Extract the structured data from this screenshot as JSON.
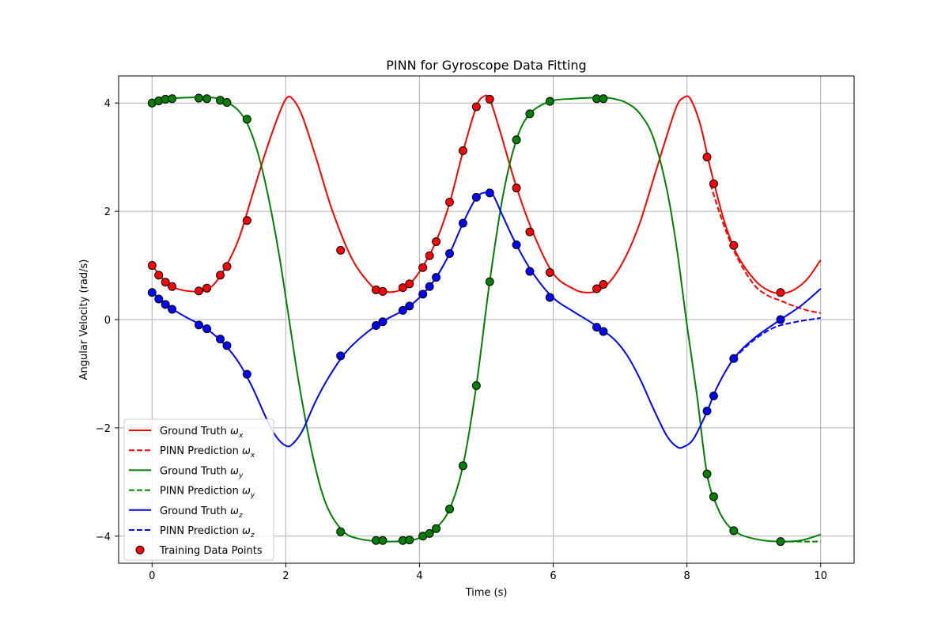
{
  "chart_data": {
    "type": "line",
    "title": "PINN for Gyroscope Data Fitting",
    "xlabel": "Time (s)",
    "ylabel": "Angular Velocity (rad/s)",
    "xlim": [
      -0.5,
      10.5
    ],
    "ylim": [
      -4.5,
      4.5
    ],
    "xticks": [
      0,
      2,
      4,
      6,
      8,
      10
    ],
    "yticks": [
      -4,
      -2,
      0,
      2,
      4
    ],
    "xtick_labels": [
      "0",
      "2",
      "4",
      "6",
      "8",
      "10"
    ],
    "ytick_labels": [
      "−4",
      "−2",
      "0",
      "2",
      "4"
    ],
    "grid": true,
    "legend_position": "lower-left",
    "legend": [
      {
        "text": "Ground Truth ",
        "sym": "ω",
        "sub": "x",
        "color": "#ff0000",
        "style": "solid"
      },
      {
        "text": "PINN Prediction ",
        "sym": "ω",
        "sub": "x",
        "color": "#ff0000",
        "style": "dashed"
      },
      {
        "text": "Ground Truth ",
        "sym": "ω",
        "sub": "y",
        "color": "#008000",
        "style": "solid"
      },
      {
        "text": "PINN Prediction ",
        "sym": "ω",
        "sub": "y",
        "color": "#008000",
        "style": "dashed"
      },
      {
        "text": "Ground Truth ",
        "sym": "ω",
        "sub": "z",
        "color": "#0000ff",
        "style": "solid"
      },
      {
        "text": "PINN Prediction ",
        "sym": "ω",
        "sub": "z",
        "color": "#0000ff",
        "style": "dashed"
      },
      {
        "text": "Training Data Points",
        "sym": "",
        "sub": "",
        "color": "#ff0000",
        "style": "marker"
      }
    ],
    "series": [
      {
        "color": "#ff0000",
        "truth": [
          [
            0,
            1.0
          ],
          [
            0.2,
            0.7
          ],
          [
            0.4,
            0.56
          ],
          [
            0.7,
            0.52
          ],
          [
            0.9,
            0.62
          ],
          [
            1.1,
            0.97
          ],
          [
            1.3,
            1.5
          ],
          [
            1.5,
            2.3
          ],
          [
            1.7,
            3.1
          ],
          [
            1.9,
            3.8
          ],
          [
            2.02,
            4.1
          ],
          [
            2.12,
            4.05
          ],
          [
            2.25,
            3.75
          ],
          [
            2.45,
            3.0
          ],
          [
            2.7,
            2.0
          ],
          [
            3.0,
            1.1
          ],
          [
            3.3,
            0.6
          ],
          [
            3.45,
            0.52
          ],
          [
            3.65,
            0.52
          ],
          [
            3.85,
            0.65
          ],
          [
            4.05,
            0.98
          ],
          [
            4.25,
            1.45
          ],
          [
            4.45,
            2.15
          ],
          [
            4.65,
            3.1
          ],
          [
            4.85,
            3.93
          ],
          [
            4.96,
            4.12
          ],
          [
            5.05,
            4.07
          ],
          [
            5.2,
            3.5
          ],
          [
            5.45,
            2.45
          ],
          [
            5.7,
            1.6
          ],
          [
            6.0,
            0.85
          ],
          [
            6.3,
            0.57
          ],
          [
            6.5,
            0.5
          ],
          [
            6.7,
            0.55
          ],
          [
            6.9,
            0.78
          ],
          [
            7.1,
            1.2
          ],
          [
            7.3,
            1.8
          ],
          [
            7.5,
            2.6
          ],
          [
            7.7,
            3.4
          ],
          [
            7.85,
            3.95
          ],
          [
            7.95,
            4.1
          ],
          [
            8.05,
            4.08
          ],
          [
            8.2,
            3.6
          ],
          [
            8.35,
            2.8
          ],
          [
            8.55,
            1.85
          ],
          [
            8.75,
            1.2
          ],
          [
            9.0,
            0.75
          ],
          [
            9.2,
            0.55
          ],
          [
            9.4,
            0.48
          ],
          [
            9.6,
            0.55
          ],
          [
            9.8,
            0.75
          ],
          [
            10.0,
            1.1
          ]
        ],
        "pinn": [
          [
            8.35,
            2.5
          ],
          [
            8.55,
            1.75
          ],
          [
            8.75,
            1.15
          ],
          [
            9.0,
            0.65
          ],
          [
            9.2,
            0.45
          ],
          [
            9.4,
            0.35
          ],
          [
            9.6,
            0.25
          ],
          [
            9.8,
            0.17
          ],
          [
            10.0,
            0.12
          ]
        ],
        "points": [
          [
            0,
            1.0
          ],
          [
            0.1,
            0.82
          ],
          [
            0.2,
            0.69
          ],
          [
            0.3,
            0.61
          ],
          [
            0.7,
            0.53
          ],
          [
            0.82,
            0.58
          ],
          [
            1.02,
            0.82
          ],
          [
            1.12,
            0.98
          ],
          [
            1.42,
            1.83
          ],
          [
            2.82,
            1.28
          ],
          [
            3.35,
            0.55
          ],
          [
            3.45,
            0.52
          ],
          [
            3.75,
            0.59
          ],
          [
            3.85,
            0.66
          ],
          [
            4.05,
            0.96
          ],
          [
            4.15,
            1.18
          ],
          [
            4.25,
            1.44
          ],
          [
            4.45,
            2.17
          ],
          [
            4.65,
            3.12
          ],
          [
            4.85,
            3.93
          ],
          [
            5.05,
            4.07
          ],
          [
            5.45,
            2.43
          ],
          [
            5.65,
            1.62
          ],
          [
            5.95,
            0.87
          ],
          [
            6.65,
            0.57
          ],
          [
            6.75,
            0.65
          ],
          [
            8.3,
            3.0
          ],
          [
            8.4,
            2.51
          ],
          [
            8.7,
            1.37
          ],
          [
            9.4,
            0.5
          ]
        ]
      },
      {
        "color": "#008000",
        "truth": [
          [
            0,
            4.0
          ],
          [
            0.2,
            4.07
          ],
          [
            0.5,
            4.1
          ],
          [
            0.9,
            4.1
          ],
          [
            1.1,
            4.03
          ],
          [
            1.3,
            3.85
          ],
          [
            1.45,
            3.55
          ],
          [
            1.6,
            3.0
          ],
          [
            1.75,
            2.2
          ],
          [
            1.9,
            1.2
          ],
          [
            2.05,
            0.0
          ],
          [
            2.2,
            -1.2
          ],
          [
            2.4,
            -2.5
          ],
          [
            2.6,
            -3.4
          ],
          [
            2.85,
            -3.9
          ],
          [
            3.1,
            -4.05
          ],
          [
            3.5,
            -4.1
          ],
          [
            3.9,
            -4.07
          ],
          [
            4.1,
            -3.97
          ],
          [
            4.25,
            -3.85
          ],
          [
            4.45,
            -3.5
          ],
          [
            4.65,
            -2.7
          ],
          [
            4.85,
            -1.22
          ],
          [
            5.05,
            0.7
          ],
          [
            5.25,
            2.3
          ],
          [
            5.45,
            3.32
          ],
          [
            5.65,
            3.8
          ],
          [
            5.95,
            4.03
          ],
          [
            6.3,
            4.08
          ],
          [
            6.7,
            4.1
          ],
          [
            6.9,
            4.08
          ],
          [
            7.1,
            4.0
          ],
          [
            7.3,
            3.8
          ],
          [
            7.5,
            3.35
          ],
          [
            7.7,
            2.4
          ],
          [
            7.85,
            1.3
          ],
          [
            8.0,
            -0.1
          ],
          [
            8.15,
            -1.4
          ],
          [
            8.3,
            -2.85
          ],
          [
            8.45,
            -3.45
          ],
          [
            8.6,
            -3.78
          ],
          [
            8.8,
            -3.97
          ],
          [
            9.1,
            -4.07
          ],
          [
            9.4,
            -4.1
          ],
          [
            9.7,
            -4.08
          ],
          [
            10.0,
            -3.97
          ]
        ],
        "pinn": [
          [
            9.4,
            -4.1
          ],
          [
            9.7,
            -4.1
          ],
          [
            10.0,
            -4.1
          ]
        ],
        "points": [
          [
            0,
            4.0
          ],
          [
            0.1,
            4.04
          ],
          [
            0.2,
            4.07
          ],
          [
            0.3,
            4.08
          ],
          [
            0.7,
            4.09
          ],
          [
            0.82,
            4.08
          ],
          [
            1.02,
            4.05
          ],
          [
            1.12,
            4.01
          ],
          [
            1.42,
            3.7
          ],
          [
            2.82,
            -3.92
          ],
          [
            3.35,
            -4.08
          ],
          [
            3.45,
            -4.08
          ],
          [
            3.75,
            -4.08
          ],
          [
            3.85,
            -4.07
          ],
          [
            4.05,
            -4.0
          ],
          [
            4.15,
            -3.95
          ],
          [
            4.25,
            -3.86
          ],
          [
            4.45,
            -3.5
          ],
          [
            4.65,
            -2.7
          ],
          [
            4.85,
            -1.22
          ],
          [
            5.05,
            0.7
          ],
          [
            5.45,
            3.32
          ],
          [
            5.65,
            3.8
          ],
          [
            5.95,
            4.03
          ],
          [
            6.65,
            4.08
          ],
          [
            6.75,
            4.08
          ],
          [
            8.3,
            -2.85
          ],
          [
            8.4,
            -3.27
          ],
          [
            8.7,
            -3.9
          ],
          [
            9.4,
            -4.1
          ]
        ]
      },
      {
        "color": "#0000ff",
        "truth": [
          [
            0,
            0.5
          ],
          [
            0.15,
            0.35
          ],
          [
            0.3,
            0.2
          ],
          [
            0.5,
            0.05
          ],
          [
            0.7,
            -0.08
          ],
          [
            0.9,
            -0.25
          ],
          [
            1.1,
            -0.48
          ],
          [
            1.3,
            -0.8
          ],
          [
            1.5,
            -1.25
          ],
          [
            1.7,
            -1.8
          ],
          [
            1.85,
            -2.15
          ],
          [
            2.0,
            -2.33
          ],
          [
            2.1,
            -2.3
          ],
          [
            2.25,
            -2.05
          ],
          [
            2.45,
            -1.5
          ],
          [
            2.65,
            -1.05
          ],
          [
            2.9,
            -0.6
          ],
          [
            3.2,
            -0.25
          ],
          [
            3.5,
            0.0
          ],
          [
            3.8,
            0.2
          ],
          [
            4.05,
            0.47
          ],
          [
            4.25,
            0.78
          ],
          [
            4.45,
            1.22
          ],
          [
            4.65,
            1.78
          ],
          [
            4.85,
            2.25
          ],
          [
            5.0,
            2.35
          ],
          [
            5.1,
            2.3
          ],
          [
            5.25,
            1.9
          ],
          [
            5.45,
            1.38
          ],
          [
            5.7,
            0.85
          ],
          [
            6.0,
            0.4
          ],
          [
            6.3,
            0.15
          ],
          [
            6.6,
            -0.08
          ],
          [
            6.9,
            -0.35
          ],
          [
            7.1,
            -0.65
          ],
          [
            7.3,
            -1.1
          ],
          [
            7.5,
            -1.65
          ],
          [
            7.7,
            -2.15
          ],
          [
            7.85,
            -2.35
          ],
          [
            7.95,
            -2.35
          ],
          [
            8.1,
            -2.2
          ],
          [
            8.3,
            -1.7
          ],
          [
            8.45,
            -1.25
          ],
          [
            8.7,
            -0.72
          ],
          [
            9.0,
            -0.35
          ],
          [
            9.4,
            0.0
          ],
          [
            9.7,
            0.25
          ],
          [
            10.0,
            0.57
          ]
        ],
        "pinn": [
          [
            8.7,
            -0.72
          ],
          [
            9.0,
            -0.38
          ],
          [
            9.3,
            -0.15
          ],
          [
            9.6,
            -0.05
          ],
          [
            10.0,
            0.03
          ]
        ],
        "points": [
          [
            0,
            0.5
          ],
          [
            0.1,
            0.38
          ],
          [
            0.2,
            0.28
          ],
          [
            0.3,
            0.19
          ],
          [
            0.7,
            -0.1
          ],
          [
            0.82,
            -0.17
          ],
          [
            1.02,
            -0.36
          ],
          [
            1.12,
            -0.48
          ],
          [
            1.42,
            -1.01
          ],
          [
            2.82,
            -0.67
          ],
          [
            3.35,
            -0.11
          ],
          [
            3.45,
            -0.04
          ],
          [
            3.75,
            0.17
          ],
          [
            3.85,
            0.25
          ],
          [
            4.05,
            0.47
          ],
          [
            4.15,
            0.61
          ],
          [
            4.25,
            0.78
          ],
          [
            4.45,
            1.22
          ],
          [
            4.65,
            1.78
          ],
          [
            4.85,
            2.26
          ],
          [
            5.05,
            2.34
          ],
          [
            5.45,
            1.38
          ],
          [
            5.65,
            0.89
          ],
          [
            5.95,
            0.41
          ],
          [
            6.65,
            -0.14
          ],
          [
            6.75,
            -0.22
          ],
          [
            8.3,
            -1.69
          ],
          [
            8.4,
            -1.41
          ],
          [
            8.7,
            -0.72
          ],
          [
            9.4,
            0.0
          ]
        ]
      }
    ]
  }
}
